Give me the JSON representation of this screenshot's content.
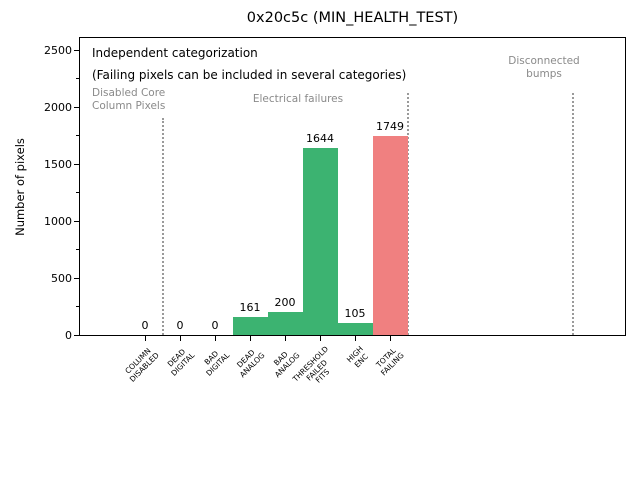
{
  "chart_data": {
    "type": "bar",
    "title": "0x20c5c (MIN_HEALTH_TEST)",
    "ylabel": "Number of pixels",
    "xlabel": "",
    "categories": [
      "COLUMN\nDISABLED",
      "DEAD\nDIGITAL",
      "BAD\nDIGITAL",
      "DEAD\nANALOG",
      "BAD\nANALOG",
      "THRESHOLD\nFAILED\nFITS",
      "HIGH\nENC",
      "TOTAL\nFAILING"
    ],
    "category_slugs": [
      "column-disabled",
      "dead-digital",
      "bad-digital",
      "dead-analog",
      "bad-analog",
      "threshold-failed-fits",
      "high-enc",
      "total-failing"
    ],
    "values": [
      0,
      0,
      0,
      161,
      200,
      1644,
      105,
      1749
    ],
    "bar_colors": [
      "#3cb371",
      "#3cb371",
      "#3cb371",
      "#3cb371",
      "#3cb371",
      "#3cb371",
      "#3cb371",
      "#f08080"
    ],
    "value_labels": [
      "0",
      "0",
      "0",
      "161",
      "200",
      "1644",
      "105",
      "1749"
    ],
    "yticks": [
      0,
      500,
      1000,
      1500,
      2000,
      2500
    ],
    "yticks_minor": [
      250,
      750,
      1250,
      1750,
      2250
    ],
    "ylim": [
      0,
      2605
    ],
    "grid": false,
    "legend": "none",
    "separators_x": [
      0.5,
      7.5,
      12.23
    ],
    "annotations": {
      "independent_line1": "Independent categorization",
      "independent_line2": "(Failing pixels can be included in several categories)",
      "disabled_core": "Disabled Core\nColumn Pixels",
      "electrical": "Electrical failures",
      "disconnected": "Disconnected\nbumps"
    }
  },
  "colors": {
    "bar_green": "#3cb371",
    "bar_red": "#f08080",
    "annotation_gray": "#8a8a8a",
    "separator_gray": "#9a9a9a",
    "axis_black": "#000000"
  }
}
